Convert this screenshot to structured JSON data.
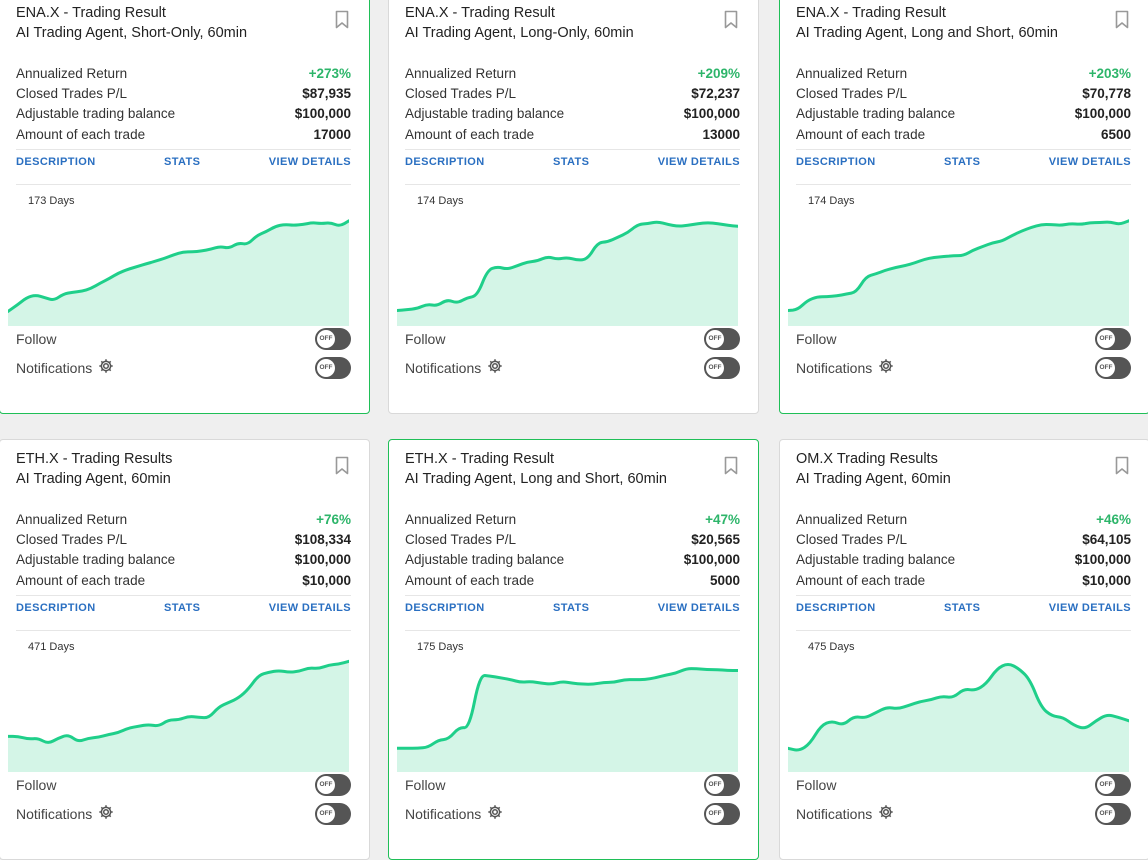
{
  "cards": [
    {
      "title": "ENA.X - Trading Result",
      "subtitle": "AI Trading Agent, Short-Only, 60min",
      "annualized_return_label": "Annualized Return",
      "annualized_return": "+273%",
      "closed_pl_label": "Closed Trades P/L",
      "closed_pl": "$87,935",
      "balance_label": "Adjustable trading balance",
      "balance": "$100,000",
      "amount_label": "Amount of each trade",
      "amount": "17000",
      "description_link": "DESCRIPTION",
      "stats_link": "STATS",
      "details_link": "VIEW DETAILS",
      "days": "173 Days",
      "follow_label": "Follow",
      "notifications_label": "Notifications",
      "follow_state": "OFF",
      "notifications_state": "OFF",
      "highlighted": true,
      "chart_data": {
        "type": "area",
        "values": [
          0.05,
          0.12,
          0.2,
          0.23,
          0.2,
          0.17,
          0.24,
          0.26,
          0.27,
          0.3,
          0.36,
          0.41,
          0.47,
          0.51,
          0.54,
          0.57,
          0.6,
          0.63,
          0.67,
          0.7,
          0.7,
          0.71,
          0.73,
          0.76,
          0.74,
          0.8,
          0.78,
          0.88,
          0.92,
          0.98,
          1.0,
          0.99,
          1.0,
          1.02,
          1.01,
          1.02,
          0.98,
          1.04
        ]
      }
    },
    {
      "title": "ENA.X - Trading Result",
      "subtitle": "AI Trading Agent, Long-Only, 60min",
      "annualized_return_label": "Annualized Return",
      "annualized_return": "+209%",
      "closed_pl_label": "Closed Trades P/L",
      "closed_pl": "$72,237",
      "balance_label": "Adjustable trading balance",
      "balance": "$100,000",
      "amount_label": "Amount of each trade",
      "amount": "13000",
      "description_link": "DESCRIPTION",
      "stats_link": "STATS",
      "details_link": "VIEW DETAILS",
      "days": "174 Days",
      "follow_label": "Follow",
      "notifications_label": "Notifications",
      "follow_state": "OFF",
      "notifications_state": "OFF",
      "highlighted": false,
      "chart_data": {
        "type": "area",
        "values": [
          0.06,
          0.07,
          0.08,
          0.13,
          0.11,
          0.18,
          0.14,
          0.2,
          0.22,
          0.5,
          0.54,
          0.51,
          0.55,
          0.59,
          0.6,
          0.65,
          0.62,
          0.64,
          0.61,
          0.62,
          0.8,
          0.81,
          0.86,
          0.91,
          1.0,
          1.01,
          1.03,
          1.0,
          0.98,
          0.99,
          1.01,
          1.02,
          1.01,
          0.99,
          0.98
        ]
      }
    },
    {
      "title": "ENA.X - Trading Result",
      "subtitle": "AI Trading Agent, Long and Short, 60min",
      "annualized_return_label": "Annualized Return",
      "annualized_return": "+203%",
      "closed_pl_label": "Closed Trades P/L",
      "closed_pl": "$70,778",
      "balance_label": "Adjustable trading balance",
      "balance": "$100,000",
      "amount_label": "Amount of each trade",
      "amount": "6500",
      "description_link": "DESCRIPTION",
      "stats_link": "STATS",
      "details_link": "VIEW DETAILS",
      "days": "174 Days",
      "follow_label": "Follow",
      "notifications_label": "Notifications",
      "follow_state": "OFF",
      "notifications_state": "OFF",
      "highlighted": true,
      "chart_data": {
        "type": "area",
        "values": [
          0.06,
          0.07,
          0.17,
          0.21,
          0.21,
          0.22,
          0.24,
          0.26,
          0.43,
          0.46,
          0.5,
          0.53,
          0.55,
          0.58,
          0.62,
          0.64,
          0.65,
          0.66,
          0.66,
          0.72,
          0.76,
          0.8,
          0.82,
          0.88,
          0.93,
          0.97,
          1.0,
          1.0,
          0.99,
          1.01,
          1.0,
          1.02,
          1.02,
          1.03,
          1.0,
          1.04
        ]
      }
    },
    {
      "title": "ETH.X - Trading Results",
      "subtitle": "AI Trading Agent, 60min",
      "annualized_return_label": "Annualized Return",
      "annualized_return": "+76%",
      "closed_pl_label": "Closed Trades P/L",
      "closed_pl": "$108,334",
      "balance_label": "Adjustable trading balance",
      "balance": "$100,000",
      "amount_label": "Amount of each trade",
      "amount": "$10,000",
      "description_link": "DESCRIPTION",
      "stats_link": "STATS",
      "details_link": "VIEW DETAILS",
      "days": "471 Days",
      "follow_label": "Follow",
      "notifications_label": "Notifications",
      "follow_state": "OFF",
      "notifications_state": "OFF",
      "highlighted": false,
      "chart_data": {
        "type": "area",
        "values": [
          0.28,
          0.28,
          0.25,
          0.26,
          0.2,
          0.26,
          0.3,
          0.22,
          0.26,
          0.27,
          0.3,
          0.32,
          0.37,
          0.39,
          0.41,
          0.39,
          0.46,
          0.46,
          0.5,
          0.49,
          0.48,
          0.6,
          0.65,
          0.7,
          0.8,
          0.95,
          0.98,
          1.0,
          0.98,
          0.99,
          1.03,
          1.02,
          1.06,
          1.07,
          1.1
        ]
      }
    },
    {
      "title": "ETH.X - Trading Result",
      "subtitle": "AI Trading Agent, Long and Short, 60min",
      "annualized_return_label": "Annualized Return",
      "annualized_return": "+47%",
      "closed_pl_label": "Closed Trades P/L",
      "closed_pl": "$20,565",
      "balance_label": "Adjustable trading balance",
      "balance": "$100,000",
      "amount_label": "Amount of each trade",
      "amount": "5000",
      "description_link": "DESCRIPTION",
      "stats_link": "STATS",
      "details_link": "VIEW DETAILS",
      "days": "175 Days",
      "follow_label": "Follow",
      "notifications_label": "Notifications",
      "follow_state": "OFF",
      "notifications_state": "OFF",
      "highlighted": true,
      "chart_data": {
        "type": "area",
        "values": [
          0.15,
          0.15,
          0.15,
          0.16,
          0.24,
          0.25,
          0.38,
          0.37,
          0.95,
          0.94,
          0.92,
          0.9,
          0.87,
          0.88,
          0.86,
          0.85,
          0.88,
          0.86,
          0.85,
          0.85,
          0.87,
          0.87,
          0.9,
          0.9,
          0.9,
          0.92,
          0.95,
          0.97,
          1.02,
          1.02,
          1.01,
          1.01,
          1.0,
          1.0
        ]
      }
    },
    {
      "title": "OM.X Trading Results",
      "subtitle": "AI Trading Agent, 60min",
      "annualized_return_label": "Annualized Return",
      "annualized_return": "+46%",
      "closed_pl_label": "Closed Trades P/L",
      "closed_pl": "$64,105",
      "balance_label": "Adjustable trading balance",
      "balance": "$100,000",
      "amount_label": "Amount of each trade",
      "amount": "$10,000",
      "description_link": "DESCRIPTION",
      "stats_link": "STATS",
      "details_link": "VIEW DETAILS",
      "days": "475 Days",
      "follow_label": "Follow",
      "notifications_label": "Notifications",
      "follow_state": "OFF",
      "notifications_state": "OFF",
      "highlighted": false,
      "chart_data": {
        "type": "area",
        "values": [
          0.15,
          0.12,
          0.2,
          0.4,
          0.45,
          0.4,
          0.5,
          0.48,
          0.54,
          0.6,
          0.58,
          0.62,
          0.66,
          0.68,
          0.72,
          0.7,
          0.8,
          0.78,
          0.85,
          1.02,
          1.08,
          1.02,
          0.9,
          0.6,
          0.5,
          0.49,
          0.4,
          0.36,
          0.45,
          0.52,
          0.49,
          0.45
        ]
      }
    }
  ],
  "colors": {
    "accent_green": "#1fcf8a",
    "link_blue": "#2a6fc1",
    "positive": "#2db56a",
    "highlight_border": "#1fbf57"
  },
  "icons": {
    "bookmark": "bookmark-icon",
    "gear": "gear-icon"
  }
}
